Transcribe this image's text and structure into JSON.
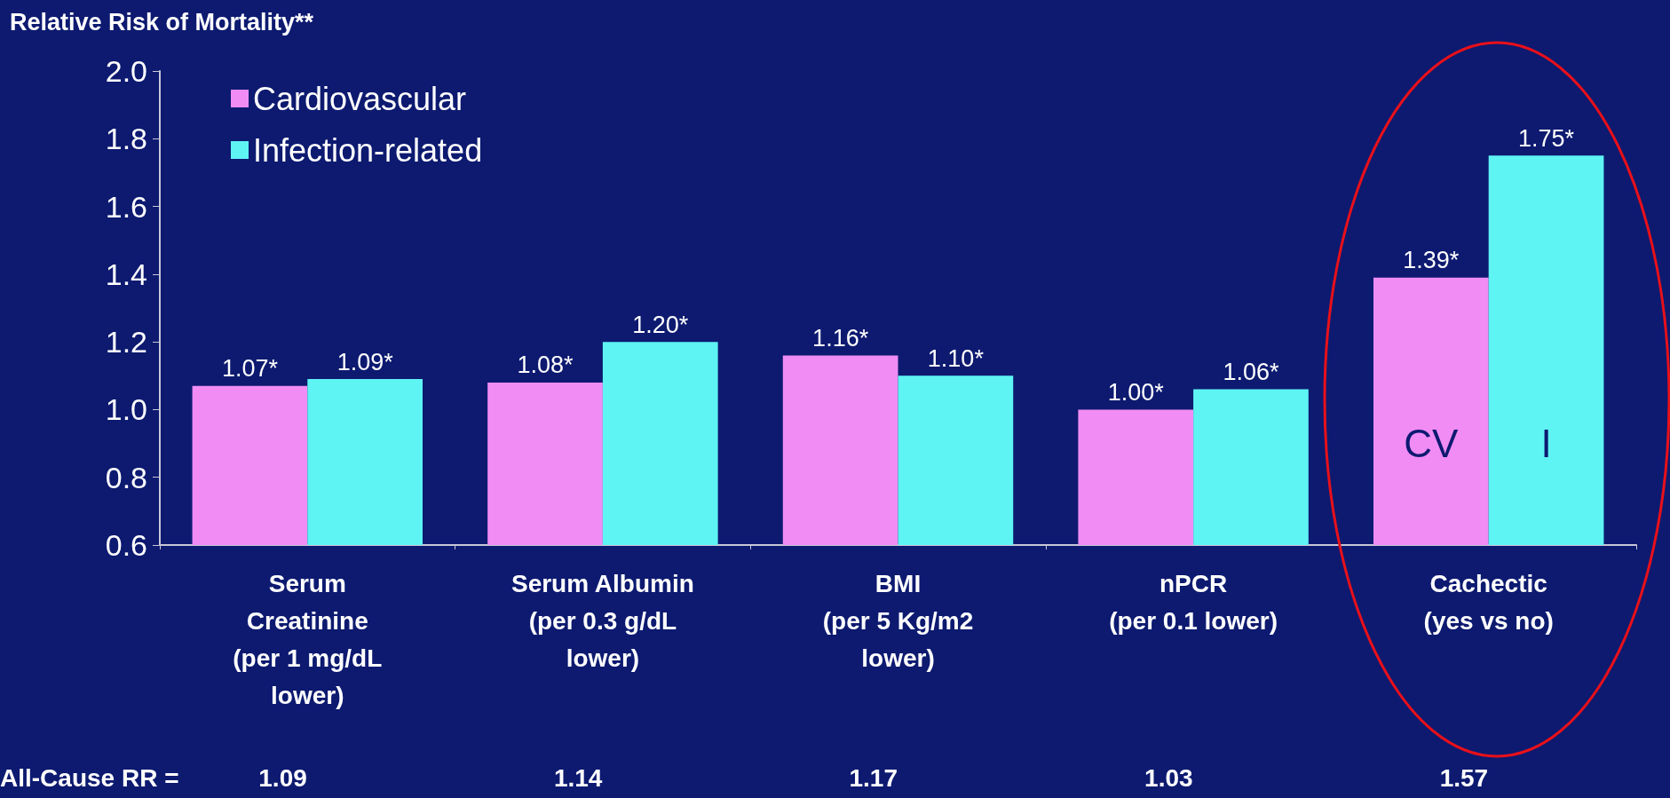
{
  "chart_data": {
    "type": "bar",
    "title": "Relative Risk of Mortality**",
    "categories": [
      "Serum\nCreatinine\n(per 1 mg/dL\nlower)",
      "Serum Albumin\n(per 0.3 g/dL\nlower)",
      "BMI\n(per 5 Kg/m2\nlower)",
      "nPCR\n(per 0.1 lower)",
      "Cachectic\n(yes vs no)"
    ],
    "series": [
      {
        "name": "Cardiovascular",
        "color": "#f08cf4",
        "values": [
          1.07,
          1.08,
          1.16,
          1.0,
          1.39
        ],
        "value_labels": [
          "1.07*",
          "1.08*",
          "1.16*",
          "1.00*",
          "1.39*"
        ]
      },
      {
        "name": "Infection-related",
        "color": "#5ef4f4",
        "values": [
          1.09,
          1.2,
          1.1,
          1.06,
          1.75
        ],
        "value_labels": [
          "1.09*",
          "1.20*",
          "1.10*",
          "1.06*",
          "1.75*"
        ]
      }
    ],
    "ylim": [
      0.6,
      2.0
    ],
    "yticks": [
      0.6,
      0.8,
      {
        "value": 1,
        "label": "1.0"
      },
      1.2,
      1.4,
      1.6,
      1.8,
      {
        "value": 2,
        "label": "2.0"
      }
    ],
    "grid": false,
    "legend": "top left",
    "annotations": [
      "All-Cause RR =",
      "1.09",
      "1.14",
      "1.17",
      "1.03",
      "1.57",
      {
        "text": "CV",
        "x": "Cachectic\n(yes vs no)",
        "y": 0.9
      },
      {
        "text": "I",
        "x": "Cachectic\n(yes vs no)",
        "y": 0.9
      }
    ]
  }
}
